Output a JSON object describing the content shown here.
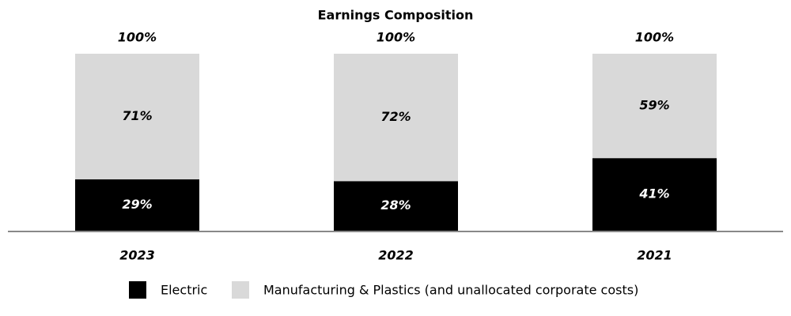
{
  "chart_data": {
    "type": "stacked_bar",
    "title": "Earnings Composition",
    "categories": [
      "2023",
      "2022",
      "2021"
    ],
    "series": [
      {
        "name": "Electric",
        "color": "#000000",
        "values": [
          29,
          28,
          41
        ],
        "value_labels": [
          "29%",
          "28%",
          "41%"
        ]
      },
      {
        "name": "Manufacturing & Plastics (and unallocated corporate costs)",
        "color": "#d9d9d9",
        "values": [
          71,
          72,
          59
        ],
        "value_labels": [
          "71%",
          "72%",
          "59%"
        ]
      }
    ],
    "totals": [
      100,
      100,
      100
    ],
    "total_labels": [
      "100%",
      "100%",
      "100%"
    ],
    "ylim": [
      0,
      100
    ],
    "legend": "bottom"
  }
}
